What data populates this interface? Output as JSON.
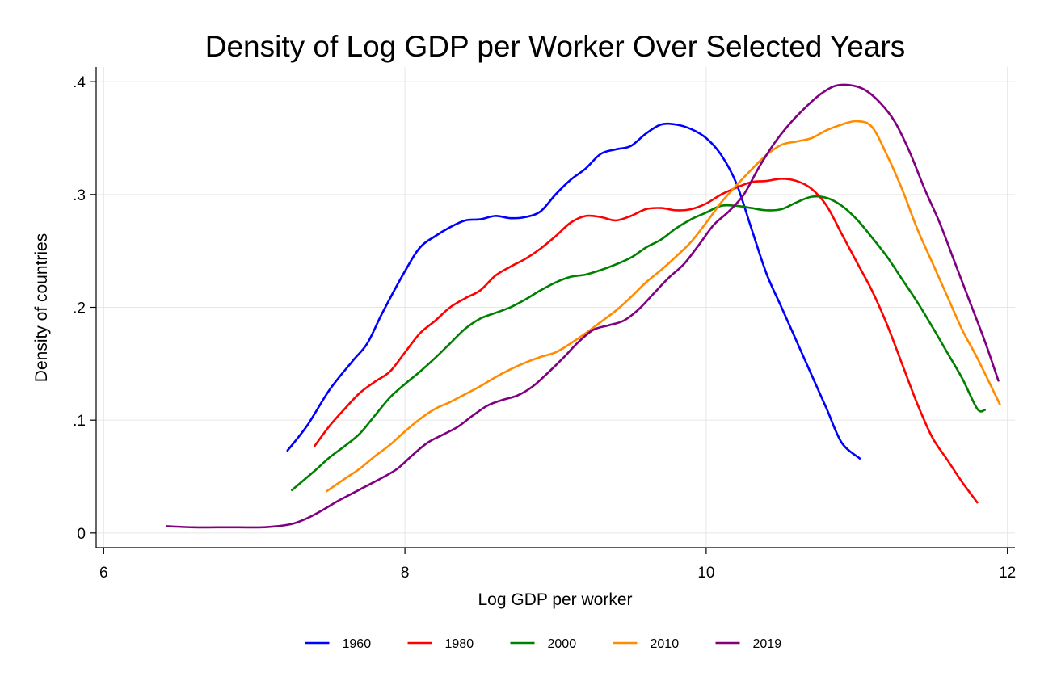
{
  "chart_data": {
    "type": "line",
    "title": "Density of Log GDP per Worker Over Selected Years",
    "xlabel": "Log GDP per worker",
    "ylabel": "Density of countries",
    "xlim": [
      5.95,
      12.05
    ],
    "ylim": [
      -0.013,
      0.413
    ],
    "xticks": [
      {
        "value": 6,
        "label": "6"
      },
      {
        "value": 8,
        "label": "8"
      },
      {
        "value": 10,
        "label": "10"
      },
      {
        "value": 12,
        "label": "12"
      }
    ],
    "yticks": [
      {
        "value": 0,
        "label": "0"
      },
      {
        "value": 0.1,
        "label": ".1"
      },
      {
        "value": 0.2,
        "label": ".2"
      },
      {
        "value": 0.3,
        "label": ".3"
      },
      {
        "value": 0.4,
        "label": ".4"
      }
    ],
    "grid": true,
    "legend": "bottom",
    "series": [
      {
        "name": "1960",
        "color": "#0000ff",
        "points": [
          [
            7.22,
            0.073
          ],
          [
            7.35,
            0.095
          ],
          [
            7.5,
            0.127
          ],
          [
            7.65,
            0.152
          ],
          [
            7.75,
            0.168
          ],
          [
            7.85,
            0.195
          ],
          [
            8.0,
            0.232
          ],
          [
            8.1,
            0.253
          ],
          [
            8.2,
            0.263
          ],
          [
            8.3,
            0.271
          ],
          [
            8.4,
            0.277
          ],
          [
            8.5,
            0.278
          ],
          [
            8.6,
            0.281
          ],
          [
            8.7,
            0.279
          ],
          [
            8.8,
            0.28
          ],
          [
            8.9,
            0.285
          ],
          [
            9.0,
            0.3
          ],
          [
            9.1,
            0.313
          ],
          [
            9.2,
            0.323
          ],
          [
            9.3,
            0.336
          ],
          [
            9.4,
            0.34
          ],
          [
            9.5,
            0.343
          ],
          [
            9.6,
            0.354
          ],
          [
            9.7,
            0.362
          ],
          [
            9.8,
            0.362
          ],
          [
            9.9,
            0.358
          ],
          [
            10.0,
            0.35
          ],
          [
            10.1,
            0.335
          ],
          [
            10.2,
            0.31
          ],
          [
            10.3,
            0.27
          ],
          [
            10.4,
            0.23
          ],
          [
            10.5,
            0.2
          ],
          [
            10.6,
            0.17
          ],
          [
            10.7,
            0.14
          ],
          [
            10.8,
            0.11
          ],
          [
            10.9,
            0.08
          ],
          [
            11.02,
            0.066
          ]
        ]
      },
      {
        "name": "1980",
        "color": "#ff0000",
        "points": [
          [
            7.4,
            0.077
          ],
          [
            7.5,
            0.095
          ],
          [
            7.6,
            0.11
          ],
          [
            7.7,
            0.124
          ],
          [
            7.8,
            0.134
          ],
          [
            7.9,
            0.143
          ],
          [
            8.0,
            0.16
          ],
          [
            8.1,
            0.177
          ],
          [
            8.2,
            0.188
          ],
          [
            8.3,
            0.2
          ],
          [
            8.4,
            0.208
          ],
          [
            8.5,
            0.215
          ],
          [
            8.6,
            0.228
          ],
          [
            8.7,
            0.236
          ],
          [
            8.8,
            0.243
          ],
          [
            8.9,
            0.252
          ],
          [
            9.0,
            0.263
          ],
          [
            9.1,
            0.275
          ],
          [
            9.2,
            0.281
          ],
          [
            9.3,
            0.28
          ],
          [
            9.4,
            0.277
          ],
          [
            9.5,
            0.281
          ],
          [
            9.6,
            0.287
          ],
          [
            9.7,
            0.288
          ],
          [
            9.8,
            0.286
          ],
          [
            9.9,
            0.287
          ],
          [
            10.0,
            0.292
          ],
          [
            10.1,
            0.3
          ],
          [
            10.2,
            0.306
          ],
          [
            10.3,
            0.311
          ],
          [
            10.4,
            0.312
          ],
          [
            10.5,
            0.314
          ],
          [
            10.6,
            0.312
          ],
          [
            10.7,
            0.305
          ],
          [
            10.8,
            0.29
          ],
          [
            10.9,
            0.265
          ],
          [
            11.0,
            0.24
          ],
          [
            11.1,
            0.215
          ],
          [
            11.2,
            0.185
          ],
          [
            11.3,
            0.15
          ],
          [
            11.4,
            0.115
          ],
          [
            11.5,
            0.085
          ],
          [
            11.6,
            0.065
          ],
          [
            11.7,
            0.045
          ],
          [
            11.8,
            0.027
          ]
        ]
      },
      {
        "name": "2000",
        "color": "#008000",
        "points": [
          [
            7.25,
            0.038
          ],
          [
            7.4,
            0.055
          ],
          [
            7.5,
            0.067
          ],
          [
            7.6,
            0.077
          ],
          [
            7.7,
            0.088
          ],
          [
            7.8,
            0.104
          ],
          [
            7.9,
            0.12
          ],
          [
            8.0,
            0.132
          ],
          [
            8.1,
            0.143
          ],
          [
            8.2,
            0.155
          ],
          [
            8.3,
            0.168
          ],
          [
            8.4,
            0.181
          ],
          [
            8.5,
            0.19
          ],
          [
            8.6,
            0.195
          ],
          [
            8.7,
            0.2
          ],
          [
            8.8,
            0.207
          ],
          [
            8.9,
            0.215
          ],
          [
            9.0,
            0.222
          ],
          [
            9.1,
            0.227
          ],
          [
            9.2,
            0.229
          ],
          [
            9.3,
            0.233
          ],
          [
            9.4,
            0.238
          ],
          [
            9.5,
            0.244
          ],
          [
            9.6,
            0.253
          ],
          [
            9.7,
            0.26
          ],
          [
            9.8,
            0.27
          ],
          [
            9.9,
            0.278
          ],
          [
            10.0,
            0.284
          ],
          [
            10.1,
            0.29
          ],
          [
            10.2,
            0.29
          ],
          [
            10.3,
            0.288
          ],
          [
            10.4,
            0.286
          ],
          [
            10.5,
            0.287
          ],
          [
            10.6,
            0.293
          ],
          [
            10.7,
            0.298
          ],
          [
            10.8,
            0.297
          ],
          [
            10.9,
            0.29
          ],
          [
            11.0,
            0.278
          ],
          [
            11.1,
            0.262
          ],
          [
            11.2,
            0.245
          ],
          [
            11.3,
            0.225
          ],
          [
            11.4,
            0.205
          ],
          [
            11.5,
            0.183
          ],
          [
            11.6,
            0.16
          ],
          [
            11.7,
            0.137
          ],
          [
            11.8,
            0.11
          ],
          [
            11.85,
            0.109
          ]
        ]
      },
      {
        "name": "2010",
        "color": "#ff8c00",
        "points": [
          [
            7.48,
            0.037
          ],
          [
            7.6,
            0.048
          ],
          [
            7.7,
            0.057
          ],
          [
            7.8,
            0.068
          ],
          [
            7.9,
            0.078
          ],
          [
            8.0,
            0.09
          ],
          [
            8.1,
            0.101
          ],
          [
            8.2,
            0.11
          ],
          [
            8.3,
            0.116
          ],
          [
            8.4,
            0.123
          ],
          [
            8.5,
            0.13
          ],
          [
            8.6,
            0.138
          ],
          [
            8.7,
            0.145
          ],
          [
            8.8,
            0.151
          ],
          [
            8.9,
            0.156
          ],
          [
            9.0,
            0.16
          ],
          [
            9.1,
            0.168
          ],
          [
            9.2,
            0.177
          ],
          [
            9.3,
            0.187
          ],
          [
            9.4,
            0.197
          ],
          [
            9.5,
            0.209
          ],
          [
            9.6,
            0.222
          ],
          [
            9.7,
            0.233
          ],
          [
            9.8,
            0.245
          ],
          [
            9.9,
            0.258
          ],
          [
            10.0,
            0.275
          ],
          [
            10.1,
            0.293
          ],
          [
            10.2,
            0.308
          ],
          [
            10.3,
            0.322
          ],
          [
            10.4,
            0.335
          ],
          [
            10.5,
            0.344
          ],
          [
            10.6,
            0.347
          ],
          [
            10.7,
            0.35
          ],
          [
            10.8,
            0.357
          ],
          [
            10.9,
            0.362
          ],
          [
            11.0,
            0.365
          ],
          [
            11.1,
            0.36
          ],
          [
            11.2,
            0.335
          ],
          [
            11.3,
            0.305
          ],
          [
            11.4,
            0.27
          ],
          [
            11.5,
            0.24
          ],
          [
            11.6,
            0.21
          ],
          [
            11.7,
            0.18
          ],
          [
            11.8,
            0.155
          ],
          [
            11.95,
            0.114
          ]
        ]
      },
      {
        "name": "2019",
        "color": "#800080",
        "points": [
          [
            6.42,
            0.006
          ],
          [
            6.6,
            0.005
          ],
          [
            6.75,
            0.005
          ],
          [
            6.9,
            0.005
          ],
          [
            7.05,
            0.005
          ],
          [
            7.15,
            0.006
          ],
          [
            7.25,
            0.008
          ],
          [
            7.35,
            0.013
          ],
          [
            7.45,
            0.02
          ],
          [
            7.55,
            0.028
          ],
          [
            7.65,
            0.035
          ],
          [
            7.75,
            0.042
          ],
          [
            7.85,
            0.049
          ],
          [
            7.95,
            0.057
          ],
          [
            8.05,
            0.069
          ],
          [
            8.15,
            0.08
          ],
          [
            8.25,
            0.087
          ],
          [
            8.35,
            0.094
          ],
          [
            8.45,
            0.104
          ],
          [
            8.55,
            0.113
          ],
          [
            8.65,
            0.118
          ],
          [
            8.75,
            0.122
          ],
          [
            8.85,
            0.13
          ],
          [
            8.95,
            0.142
          ],
          [
            9.05,
            0.155
          ],
          [
            9.15,
            0.169
          ],
          [
            9.25,
            0.18
          ],
          [
            9.35,
            0.184
          ],
          [
            9.45,
            0.188
          ],
          [
            9.55,
            0.198
          ],
          [
            9.65,
            0.212
          ],
          [
            9.75,
            0.226
          ],
          [
            9.85,
            0.238
          ],
          [
            9.95,
            0.255
          ],
          [
            10.05,
            0.273
          ],
          [
            10.15,
            0.285
          ],
          [
            10.25,
            0.3
          ],
          [
            10.35,
            0.324
          ],
          [
            10.45,
            0.345
          ],
          [
            10.55,
            0.362
          ],
          [
            10.65,
            0.376
          ],
          [
            10.75,
            0.388
          ],
          [
            10.85,
            0.396
          ],
          [
            10.95,
            0.397
          ],
          [
            11.05,
            0.393
          ],
          [
            11.15,
            0.382
          ],
          [
            11.25,
            0.365
          ],
          [
            11.35,
            0.338
          ],
          [
            11.45,
            0.305
          ],
          [
            11.55,
            0.275
          ],
          [
            11.65,
            0.24
          ],
          [
            11.75,
            0.205
          ],
          [
            11.85,
            0.17
          ],
          [
            11.94,
            0.135
          ]
        ]
      }
    ]
  }
}
